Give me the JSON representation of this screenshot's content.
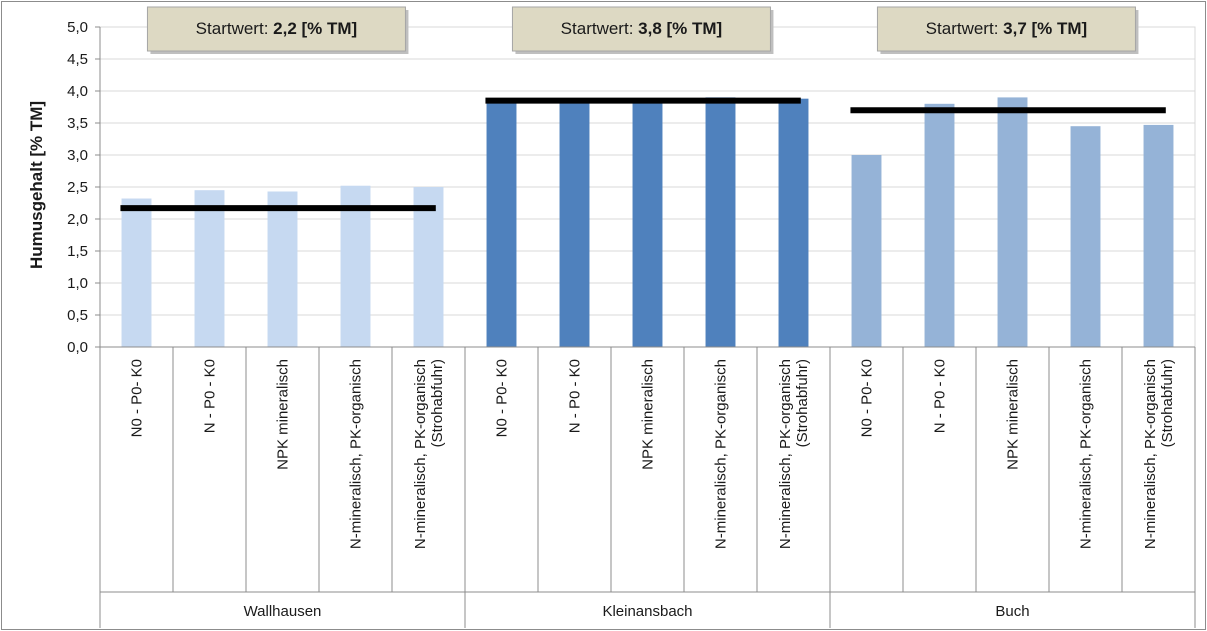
{
  "chart_data": {
    "type": "bar",
    "ylabel": "Humusgehalt [% TM]",
    "ylim": [
      0,
      5
    ],
    "ytick_step": 0.5,
    "grid": true,
    "groups": [
      {
        "name": "Wallhausen",
        "color": "#c6d9f1",
        "start_label": "Startwert: ",
        "start_value_label": "2,2 [% TM]",
        "start_value": 2.17,
        "categories": [
          "N0 - P0- K0",
          "N - P0 - K0",
          "NPK mineralisch",
          "N-mineralisch, PK-organisch",
          "N-mineralisch, PK-organisch (Strohabfuhr)"
        ],
        "values": [
          2.32,
          2.45,
          2.43,
          2.52,
          2.5
        ]
      },
      {
        "name": "Kleinansbach",
        "color": "#4f81bd",
        "start_label": "Startwert: ",
        "start_value_label": "3,8 [% TM]",
        "start_value": 3.85,
        "categories": [
          "N0 - P0- K0",
          "N - P0 - K0",
          "NPK mineralisch",
          "N-mineralisch, PK-organisch",
          "N-mineralisch, PK-organisch (Strohabfuhr)"
        ],
        "values": [
          3.85,
          3.88,
          3.86,
          3.9,
          3.88
        ]
      },
      {
        "name": "Buch",
        "color": "#95b3d7",
        "start_label": "Startwert: ",
        "start_value_label": "3,7 [% TM]",
        "start_value": 3.7,
        "categories": [
          "N0 - P0- K0",
          "N - P0 - K0",
          "NPK mineralisch",
          "N-mineralisch, PK-organisch",
          "N-mineralisch, PK-organisch (Strohabfuhr)"
        ],
        "values": [
          3.0,
          3.8,
          3.9,
          3.45,
          3.47
        ]
      }
    ]
  }
}
